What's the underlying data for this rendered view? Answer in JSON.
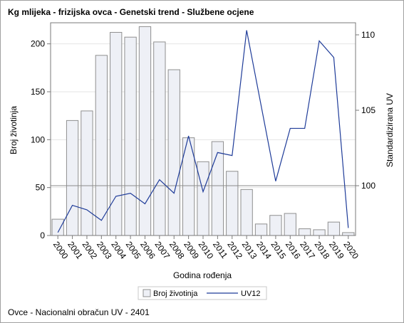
{
  "chart_data": {
    "type": "bar",
    "title": "Kg mlijeka - frizijska ovca - Genetski trend - Službene ocjene",
    "footnote": "Ovce - Nacionalni obračun UV - 2401",
    "xlabel": "Godina rođenja",
    "ylabel_left": "Broj životinja",
    "ylabel_right": "Standardizirana UV",
    "categories": [
      "2000",
      "2001",
      "2002",
      "2003",
      "2004",
      "2005",
      "2006",
      "2007",
      "2008",
      "2009",
      "2010",
      "2011",
      "2012",
      "2013",
      "2014",
      "2015",
      "2016",
      "2017",
      "2018",
      "2019",
      "2020"
    ],
    "ylim_left": [
      0,
      222
    ],
    "yticks_left": [
      0,
      50,
      100,
      150,
      200
    ],
    "ylim_right": [
      96.7,
      110.8
    ],
    "yticks_right": [
      100,
      105,
      110
    ],
    "reference_line_right": 100,
    "series": [
      {
        "name": "Broj životinja",
        "type": "bar",
        "axis": "left",
        "values": [
          17,
          120,
          130,
          188,
          212,
          207,
          218,
          202,
          173,
          102,
          77,
          98,
          67,
          48,
          12,
          21,
          23,
          7,
          6,
          14,
          3
        ]
      },
      {
        "name": "UV12",
        "type": "line",
        "axis": "right",
        "values": [
          96.9,
          98.7,
          98.4,
          97.7,
          99.3,
          99.5,
          98.8,
          100.4,
          99.5,
          103.3,
          99.6,
          102.2,
          102.0,
          110.3,
          105.3,
          100.3,
          103.8,
          103.8,
          109.6,
          108.5,
          97.2
        ]
      }
    ],
    "grid": true,
    "legend_position": "bottom"
  },
  "colors": {
    "bar_fill": "#eef0f6",
    "bar_stroke": "#8f8f8f",
    "line": "#1f3c99",
    "grid": "#e4e4e4",
    "axis": "#7a7a7a",
    "reference_line": "#8a8a8a"
  }
}
